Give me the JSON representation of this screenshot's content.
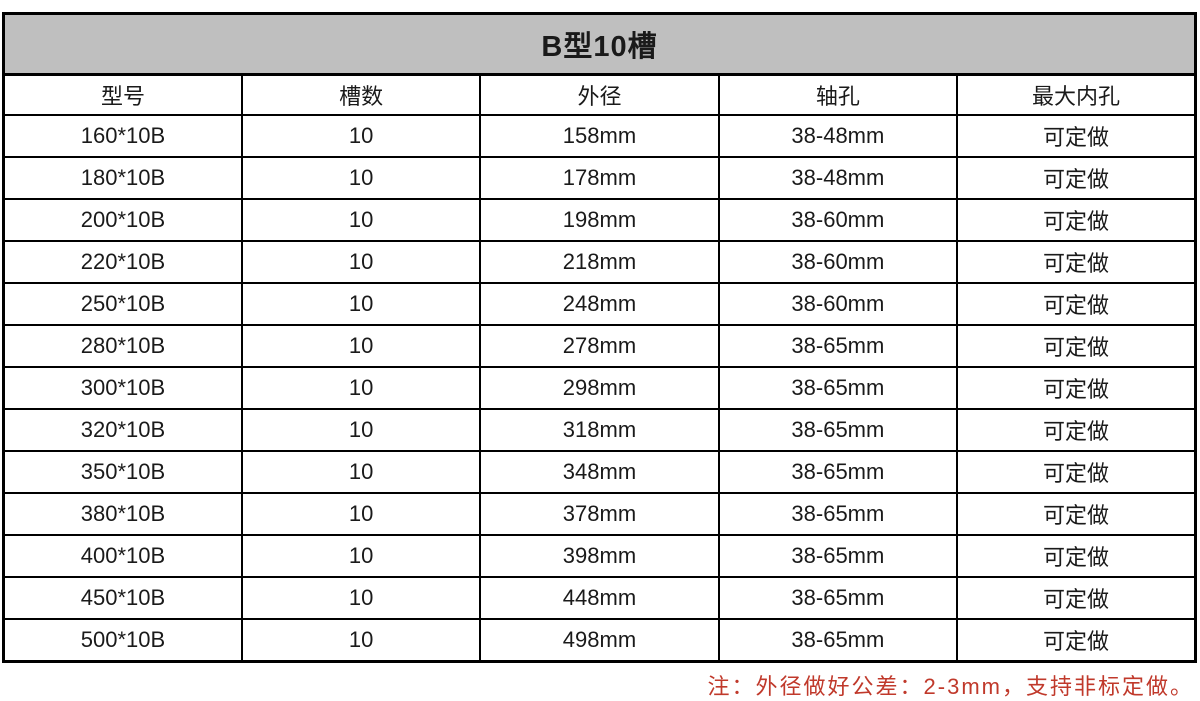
{
  "table": {
    "title": "B型10槽",
    "columns": [
      "型号",
      "槽数",
      "外径",
      "轴孔",
      "最大内孔"
    ],
    "rows": [
      [
        "160*10B",
        "10",
        "158mm",
        "38-48mm",
        "可定做"
      ],
      [
        "180*10B",
        "10",
        "178mm",
        "38-48mm",
        "可定做"
      ],
      [
        "200*10B",
        "10",
        "198mm",
        "38-60mm",
        "可定做"
      ],
      [
        "220*10B",
        "10",
        "218mm",
        "38-60mm",
        "可定做"
      ],
      [
        "250*10B",
        "10",
        "248mm",
        "38-60mm",
        "可定做"
      ],
      [
        "280*10B",
        "10",
        "278mm",
        "38-65mm",
        "可定做"
      ],
      [
        "300*10B",
        "10",
        "298mm",
        "38-65mm",
        "可定做"
      ],
      [
        "320*10B",
        "10",
        "318mm",
        "38-65mm",
        "可定做"
      ],
      [
        "350*10B",
        "10",
        "348mm",
        "38-65mm",
        "可定做"
      ],
      [
        "380*10B",
        "10",
        "378mm",
        "38-65mm",
        "可定做"
      ],
      [
        "400*10B",
        "10",
        "398mm",
        "38-65mm",
        "可定做"
      ],
      [
        "450*10B",
        "10",
        "448mm",
        "38-65mm",
        "可定做"
      ],
      [
        "500*10B",
        "10",
        "498mm",
        "38-65mm",
        "可定做"
      ]
    ]
  },
  "note": {
    "text": "注：外径做好公差：2-3mm，支持非标定做。"
  },
  "colors": {
    "title_bg": "#bfbfbf",
    "border": "#000000",
    "note_red": "#c0392b"
  }
}
